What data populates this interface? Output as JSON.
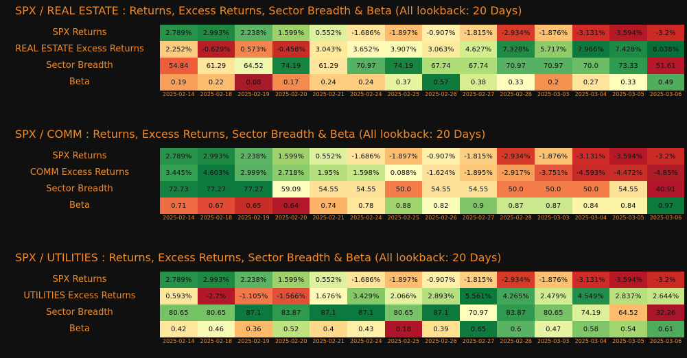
{
  "dates": [
    "2025-02-14",
    "2025-02-18",
    "2025-02-19",
    "2025-02-20",
    "2025-02-21",
    "2025-02-24",
    "2025-02-25",
    "2025-02-26",
    "2025-02-27",
    "2025-02-28",
    "2025-03-03",
    "2025-03-04",
    "2025-03-05",
    "2025-03-06"
  ],
  "panels": [
    {
      "title": "SPX / REAL ESTATE : Returns, Excess Returns, Sector Breadth & Beta (All lookback: 20 Days)",
      "rows": [
        {
          "label": "SPX Returns",
          "cells": [
            "2.789%",
            "2.993%",
            "2.238%",
            "1.599%",
            "0.552%",
            "-1.686%",
            "-1.897%",
            "-0.907%",
            "-1.815%",
            "-2.934%",
            "-1.876%",
            "-3.131%",
            "-3.594%",
            "-3.2%"
          ],
          "colors": [
            "#26924a",
            "#1e8a44",
            "#5bb464",
            "#9ed169",
            "#dcf09e",
            "#fee39a",
            "#fdbd6e",
            "#fef0a8",
            "#fece82",
            "#d83a2a",
            "#fcc070",
            "#d22b27",
            "#b61826",
            "#cd2a26"
          ]
        },
        {
          "label": "REAL ESTATE Excess Returns",
          "cells": [
            "2.252%",
            "-0.629%",
            "0.573%",
            "-0.458%",
            "3.043%",
            "3.652%",
            "3.907%",
            "3.063%",
            "4.627%",
            "7.328%",
            "5.717%",
            "7.966%",
            "7.428%",
            "8.038%"
          ],
          "colors": [
            "#fdcb7d",
            "#b81e26",
            "#f2864d",
            "#c72d26",
            "#fee99a",
            "#fffab8",
            "#fafcb4",
            "#feea9c",
            "#d4ed8c",
            "#1f8b45",
            "#8fcb67",
            "#0c7a3e",
            "#1d8a45",
            "#077039"
          ]
        },
        {
          "label": "Sector Breadth",
          "cells": [
            "54.84",
            "61.29",
            "64.52",
            "74.19",
            "61.29",
            "70.97",
            "74.19",
            "67.74",
            "67.74",
            "70.97",
            "70.97",
            "70.0",
            "73.33",
            "51.61"
          ],
          "colors": [
            "#ed5d3c",
            "#fde59b",
            "#eff7ac",
            "#17853f",
            "#fde59b",
            "#56b162",
            "#17853f",
            "#aedc76",
            "#aedc76",
            "#56b162",
            "#56b162",
            "#6abd64",
            "#2e9a4c",
            "#b8162a"
          ]
        },
        {
          "label": "Beta",
          "cells": [
            "0.19",
            "0.22",
            "0.08",
            "0.17",
            "0.24",
            "0.24",
            "0.37",
            "0.57",
            "0.38",
            "0.33",
            "0.2",
            "0.27",
            "0.33",
            "0.49"
          ],
          "colors": [
            "#f8a05b",
            "#fdbd6e",
            "#a61a2a",
            "#f48a4e",
            "#fecd7f",
            "#fecd7f",
            "#e7f4a0",
            "#0e7a3c",
            "#d8ee8e",
            "#fffdbc",
            "#f6924f",
            "#fee59b",
            "#fffdbc",
            "#52ac5e"
          ]
        }
      ]
    },
    {
      "title": "SPX / COMM : Returns, Excess Returns, Sector Breadth & Beta (All lookback: 20 Days)",
      "rows": [
        {
          "label": "SPX Returns",
          "cells": [
            "2.789%",
            "2.993%",
            "2.238%",
            "1.599%",
            "0.552%",
            "-1.686%",
            "-1.897%",
            "-0.907%",
            "-1.815%",
            "-2.934%",
            "-1.876%",
            "-3.131%",
            "-3.594%",
            "-3.2%"
          ],
          "colors": [
            "#26924a",
            "#1e8a44",
            "#5bb464",
            "#9ed169",
            "#dcf09e",
            "#fee39a",
            "#fdbd6e",
            "#fef0a8",
            "#fece82",
            "#d83a2a",
            "#fcc070",
            "#d22b27",
            "#b61826",
            "#cd2a26"
          ]
        },
        {
          "label": "COMM Excess Returns",
          "cells": [
            "3.445%",
            "4.603%",
            "2.999%",
            "2.718%",
            "1.95%",
            "1.598%",
            "0.088%",
            "-1.624%",
            "-1.895%",
            "-2.917%",
            "-3.751%",
            "-4.593%",
            "-4.472%",
            "-4.85%"
          ],
          "colors": [
            "#34a052",
            "#0d7b3d",
            "#58b263",
            "#8ccc6a",
            "#b4df7c",
            "#c7e78a",
            "#fffcbd",
            "#fde19a",
            "#fdc878",
            "#f59c58",
            "#e4573a",
            "#c82b27",
            "#c92f28",
            "#b01c28"
          ]
        },
        {
          "label": "Sector Breadth",
          "cells": [
            "72.73",
            "77.27",
            "77.27",
            "59.09",
            "54.55",
            "54.55",
            "50.0",
            "54.55",
            "54.55",
            "50.0",
            "50.0",
            "50.0",
            "54.55",
            "40.91"
          ],
          "colors": [
            "#138140",
            "#0b7a3c",
            "#0b7a3c",
            "#fffdbe",
            "#fde297",
            "#fde297",
            "#f47d4a",
            "#fde297",
            "#fde297",
            "#f47d4a",
            "#f47d4a",
            "#f47d4a",
            "#fde297",
            "#b0152a"
          ]
        },
        {
          "label": "Beta",
          "cells": [
            "0.71",
            "0.67",
            "0.65",
            "0.64",
            "0.74",
            "0.78",
            "0.88",
            "0.82",
            "0.9",
            "0.87",
            "0.87",
            "0.84",
            "0.84",
            "0.97"
          ],
          "colors": [
            "#f06d43",
            "#e14b35",
            "#c92d27",
            "#b31928",
            "#fdb466",
            "#fee79b",
            "#9fd56c",
            "#fafcb7",
            "#7fc466",
            "#cbe98c",
            "#cbe98c",
            "#fcf4a7",
            "#fcf4a7",
            "#0c7a3c"
          ]
        }
      ]
    },
    {
      "title": "SPX / UTILITIES : Returns, Excess Returns, Sector Breadth & Beta (All lookback: 20 Days)",
      "rows": [
        {
          "label": "SPX Returns",
          "cells": [
            "2.789%",
            "2.993%",
            "2.238%",
            "1.599%",
            "0.552%",
            "-1.686%",
            "-1.897%",
            "-0.907%",
            "-1.815%",
            "-2.934%",
            "-1.876%",
            "-3.131%",
            "-3.594%",
            "-3.2%"
          ],
          "colors": [
            "#26924a",
            "#1e8a44",
            "#5bb464",
            "#9ed169",
            "#dcf09e",
            "#fee39a",
            "#fdbd6e",
            "#fef0a8",
            "#fece82",
            "#d83a2a",
            "#fcc070",
            "#d22b27",
            "#b61826",
            "#cd2a26"
          ]
        },
        {
          "label": "UTILITIES Excess Returns",
          "cells": [
            "0.593%",
            "-2.7%",
            "-1.105%",
            "-1.566%",
            "1.676%",
            "3.429%",
            "2.066%",
            "2.893%",
            "5.561%",
            "4.265%",
            "2.479%",
            "4.549%",
            "2.837%",
            "2.644%"
          ],
          "colors": [
            "#fee79a",
            "#b41727",
            "#f27648",
            "#e24f37",
            "#fffbb6",
            "#84c867",
            "#e2f29e",
            "#b5e07d",
            "#0b7a3d",
            "#42a559",
            "#d0eb90",
            "#22904a",
            "#b8e17e",
            "#c4e686"
          ]
        },
        {
          "label": "Sector Breadth",
          "cells": [
            "80.65",
            "80.65",
            "87.1",
            "83.87",
            "87.1",
            "87.1",
            "80.65",
            "87.1",
            "70.97",
            "83.87",
            "80.65",
            "74.19",
            "64.52",
            "32.26"
          ],
          "colors": [
            "#77c266",
            "#77c266",
            "#0c7a3e",
            "#2f9a4e",
            "#0c7a3e",
            "#0c7a3e",
            "#77c266",
            "#0c7a3e",
            "#fffdbc",
            "#2f9a4e",
            "#77c266",
            "#dcef99",
            "#fdbd6c",
            "#aa1529"
          ]
        },
        {
          "label": "Beta",
          "cells": [
            "0.42",
            "0.46",
            "0.36",
            "0.52",
            "0.4",
            "0.43",
            "0.18",
            "0.39",
            "0.65",
            "0.6",
            "0.47",
            "0.58",
            "0.54",
            "0.61"
          ],
          "colors": [
            "#fee79c",
            "#f8fab6",
            "#fdba6b",
            "#bde27f",
            "#fed88b",
            "#fef1a7",
            "#b01428",
            "#fee08f",
            "#0e7a3e",
            "#5ab363",
            "#e6f4a3",
            "#7fc668",
            "#a4d670",
            "#4eab5c"
          ]
        }
      ]
    }
  ]
}
